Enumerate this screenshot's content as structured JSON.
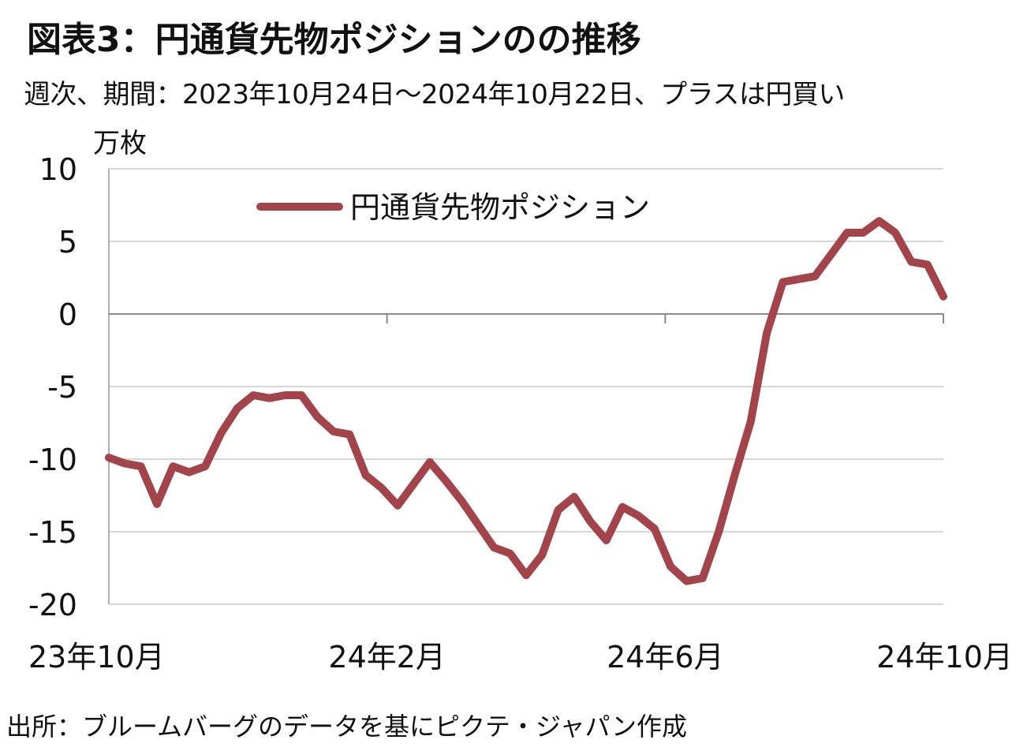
{
  "title": "図表3：円通貨先物ポジションのの推移",
  "subtitle": "週次、期間：2023年10月24日～2024年10月22日、プラスは円買い",
  "source": "出所：ブルームバーグのデータを基にピクテ・ジャパン作成",
  "chart_data": {
    "type": "line",
    "unit_label": "万枚",
    "ylim": [
      -20,
      10
    ],
    "yticks": [
      10,
      5,
      0,
      -5,
      -10,
      -15,
      -20
    ],
    "ytick_labels": [
      "10",
      "5",
      "0",
      "-5",
      "-10",
      "-15",
      "-20"
    ],
    "xticks": [
      "23年10月",
      "24年2月",
      "24年6月",
      "24年10月"
    ],
    "grid": true,
    "legend_position": "top-center",
    "line_color": "#a3434a",
    "series": [
      {
        "name": "円通貨先物ポジション",
        "x": [
          "2023-10-24",
          "2023-10-31",
          "2023-11-07",
          "2023-11-14",
          "2023-11-21",
          "2023-11-28",
          "2023-12-05",
          "2023-12-12",
          "2023-12-19",
          "2023-12-26",
          "2024-01-02",
          "2024-01-09",
          "2024-01-16",
          "2024-01-23",
          "2024-01-30",
          "2024-02-06",
          "2024-02-13",
          "2024-02-20",
          "2024-02-27",
          "2024-03-05",
          "2024-03-12",
          "2024-03-19",
          "2024-03-26",
          "2024-04-02",
          "2024-04-09",
          "2024-04-16",
          "2024-04-23",
          "2024-04-30",
          "2024-05-07",
          "2024-05-14",
          "2024-05-21",
          "2024-05-28",
          "2024-06-04",
          "2024-06-11",
          "2024-06-18",
          "2024-06-25",
          "2024-07-02",
          "2024-07-09",
          "2024-07-16",
          "2024-07-23",
          "2024-07-30",
          "2024-08-06",
          "2024-08-13",
          "2024-08-20",
          "2024-08-27",
          "2024-09-03",
          "2024-09-10",
          "2024-09-17",
          "2024-09-24",
          "2024-10-01",
          "2024-10-08",
          "2024-10-15",
          "2024-10-22"
        ],
        "values": [
          -9.9,
          -10.3,
          -10.5,
          -13.1,
          -10.5,
          -10.9,
          -10.5,
          -8.2,
          -6.5,
          -5.6,
          -5.8,
          -5.6,
          -5.6,
          -7.1,
          -8.1,
          -8.3,
          -11.1,
          -12,
          -13.2,
          -11.7,
          -10.2,
          -11.5,
          -12.9,
          -14.5,
          -16.1,
          -16.5,
          -18,
          -16.6,
          -13.5,
          -12.6,
          -14.3,
          -15.6,
          -13.3,
          -13.9,
          -14.8,
          -17.4,
          -18.4,
          -18.2,
          -15,
          -11.1,
          -7.4,
          -1.3,
          2.2,
          2.4,
          2.6,
          4.1,
          5.6,
          5.6,
          6.4,
          5.6,
          3.6,
          3.4,
          1.2
        ]
      }
    ]
  }
}
